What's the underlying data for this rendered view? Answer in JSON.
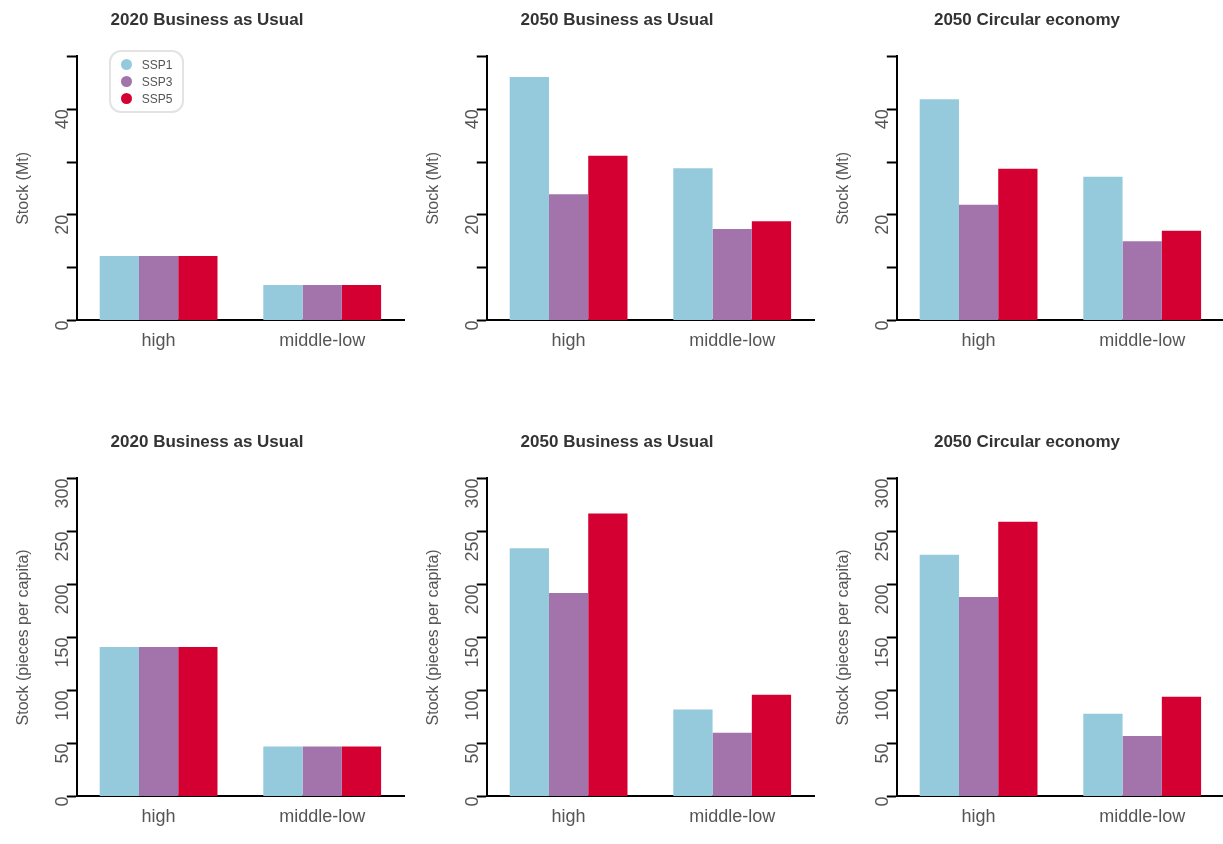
{
  "chart_data": [
    {
      "type": "bar",
      "title": "2020 Business as Usual",
      "ylabel": "Stock (Mt)",
      "categories": [
        "high",
        "middle-low"
      ],
      "series": [
        {
          "name": "SSP1",
          "color": "#94cadb",
          "values": [
            12.2,
            6.7
          ]
        },
        {
          "name": "SSP3",
          "color": "#a373ab",
          "values": [
            12.2,
            6.7
          ]
        },
        {
          "name": "SSP5",
          "color": "#d50032",
          "values": [
            12.2,
            6.7
          ]
        }
      ],
      "ylim": [
        0,
        50
      ],
      "yticks": [
        0,
        {
          "value": 10,
          "label": null
        },
        20,
        {
          "value": 30,
          "label": null
        },
        40,
        {
          "value": 50,
          "label": null
        }
      ],
      "grid": false,
      "legend": "top left"
    },
    {
      "type": "bar",
      "title": "2050 Business as Usual",
      "ylabel": "Stock (Mt)",
      "categories": [
        "high",
        "middle-low"
      ],
      "series": [
        {
          "color": "#94cadb",
          "values": [
            46.1,
            28.8
          ]
        },
        {
          "color": "#a373ab",
          "values": [
            23.9,
            17.3
          ]
        },
        {
          "color": "#d50032",
          "values": [
            31.2,
            18.8
          ]
        }
      ],
      "ylim": [
        0,
        50
      ],
      "yticks": [
        0,
        {
          "value": 10,
          "label": null
        },
        20,
        {
          "value": 30,
          "label": null
        },
        40,
        {
          "value": 50,
          "label": null
        }
      ],
      "grid": false,
      "legend": false
    },
    {
      "type": "bar",
      "title": "2050 Circular economy",
      "ylabel": "Stock (Mt)",
      "categories": [
        "high",
        "middle-low"
      ],
      "series": [
        {
          "color": "#94cadb",
          "values": [
            41.9,
            27.2
          ]
        },
        {
          "color": "#a373ab",
          "values": [
            21.9,
            15.0
          ]
        },
        {
          "color": "#d50032",
          "values": [
            28.7,
            17.0
          ]
        }
      ],
      "ylim": [
        0,
        50
      ],
      "yticks": [
        0,
        {
          "value": 10,
          "label": null
        },
        20,
        {
          "value": 30,
          "label": null
        },
        40,
        {
          "value": 50,
          "label": null
        }
      ],
      "grid": false,
      "legend": false
    },
    {
      "type": "bar",
      "title": "2020 Business as Usual",
      "ylabel": "Stock (pieces per capita)",
      "categories": [
        "high",
        "middle-low"
      ],
      "series": [
        {
          "color": "#94cadb",
          "values": [
            141,
            47
          ]
        },
        {
          "color": "#a373ab",
          "values": [
            141,
            47
          ]
        },
        {
          "color": "#d50032",
          "values": [
            141,
            47
          ]
        }
      ],
      "ylim": [
        0,
        300
      ],
      "yticks": [
        0,
        50,
        100,
        150,
        200,
        250,
        300
      ],
      "grid": false,
      "legend": false
    },
    {
      "type": "bar",
      "title": "2050 Business as Usual",
      "ylabel": "Stock (pieces per capita)",
      "categories": [
        "high",
        "middle-low"
      ],
      "series": [
        {
          "color": "#94cadb",
          "values": [
            234,
            82
          ]
        },
        {
          "color": "#a373ab",
          "values": [
            192,
            60
          ]
        },
        {
          "color": "#d50032",
          "values": [
            267,
            96
          ]
        }
      ],
      "ylim": [
        0,
        300
      ],
      "yticks": [
        0,
        50,
        100,
        150,
        200,
        250,
        300
      ],
      "grid": false,
      "legend": false
    },
    {
      "type": "bar",
      "title": "2050 Circular economy",
      "ylabel": "Stock (pieces per capita)",
      "categories": [
        "high",
        "middle-low"
      ],
      "series": [
        {
          "color": "#94cadb",
          "values": [
            228,
            78
          ]
        },
        {
          "color": "#a373ab",
          "values": [
            188,
            57
          ]
        },
        {
          "color": "#d50032",
          "values": [
            259,
            94
          ]
        }
      ],
      "ylim": [
        0,
        300
      ],
      "yticks": [
        0,
        50,
        100,
        150,
        200,
        250,
        300
      ],
      "grid": false,
      "legend": false
    }
  ]
}
